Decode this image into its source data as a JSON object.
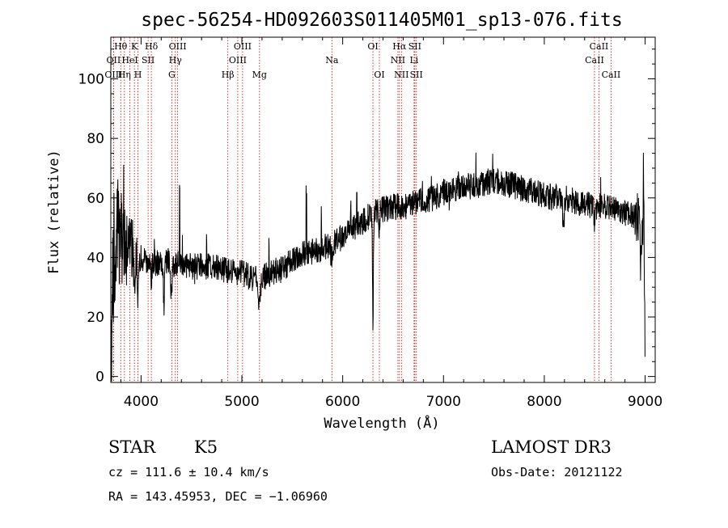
{
  "chart_data": {
    "type": "line",
    "title": "spec-56254-HD092603S011405M01_sp13-076.fits",
    "xlabel": "Wavelength (Å)",
    "ylabel": "Flux (relative)",
    "xlim": [
      3700,
      9100
    ],
    "ylim": [
      -2,
      114
    ],
    "xticks": [
      4000,
      5000,
      6000,
      7000,
      8000,
      9000
    ],
    "yticks": [
      0,
      20,
      40,
      60,
      80,
      100
    ],
    "xtick_labels": [
      "4000",
      "5000",
      "6000",
      "7000",
      "8000",
      "9000"
    ],
    "ytick_labels": [
      "0",
      "20",
      "40",
      "60",
      "80",
      "100"
    ],
    "continuum": [
      [
        3700,
        42
      ],
      [
        3800,
        47
      ],
      [
        3900,
        43
      ],
      [
        4000,
        40
      ],
      [
        4100,
        38
      ],
      [
        4200,
        38
      ],
      [
        4300,
        39
      ],
      [
        4400,
        37
      ],
      [
        4500,
        37
      ],
      [
        4600,
        37
      ],
      [
        4700,
        37
      ],
      [
        4800,
        36
      ],
      [
        4900,
        35
      ],
      [
        5000,
        35
      ],
      [
        5100,
        33
      ],
      [
        5200,
        33
      ],
      [
        5300,
        35
      ],
      [
        5400,
        36
      ],
      [
        5500,
        39
      ],
      [
        5600,
        41
      ],
      [
        5700,
        42
      ],
      [
        5800,
        43
      ],
      [
        5900,
        45
      ],
      [
        6000,
        47
      ],
      [
        6100,
        50
      ],
      [
        6200,
        52
      ],
      [
        6300,
        55
      ],
      [
        6400,
        56
      ],
      [
        6500,
        57
      ],
      [
        6600,
        57
      ],
      [
        6700,
        58
      ],
      [
        6800,
        59
      ],
      [
        6900,
        60
      ],
      [
        7000,
        62
      ],
      [
        7100,
        63
      ],
      [
        7200,
        64
      ],
      [
        7300,
        64
      ],
      [
        7400,
        65
      ],
      [
        7500,
        66
      ],
      [
        7600,
        65
      ],
      [
        7700,
        64
      ],
      [
        7800,
        63
      ],
      [
        7900,
        62
      ],
      [
        8000,
        61
      ],
      [
        8100,
        60
      ],
      [
        8200,
        60
      ],
      [
        8300,
        59
      ],
      [
        8400,
        58
      ],
      [
        8500,
        57
      ],
      [
        8600,
        57
      ],
      [
        8700,
        56
      ],
      [
        8800,
        55
      ],
      [
        8900,
        54
      ],
      [
        9000,
        52
      ]
    ],
    "absorption_features": [
      {
        "x": 3710,
        "depth": 40,
        "width": 10
      },
      {
        "x": 3934,
        "depth": 12,
        "width": 8
      },
      {
        "x": 3969,
        "depth": 12,
        "width": 8
      },
      {
        "x": 4101,
        "depth": 6,
        "width": 8
      },
      {
        "x": 4227,
        "depth": 14,
        "width": 8
      },
      {
        "x": 4300,
        "depth": 10,
        "width": 14
      },
      {
        "x": 5175,
        "depth": 9,
        "width": 16
      },
      {
        "x": 5890,
        "depth": 6,
        "width": 10
      },
      {
        "x": 6300,
        "depth": 36,
        "width": 6
      },
      {
        "x": 6363,
        "depth": 8,
        "width": 6
      },
      {
        "x": 8190,
        "depth": 10,
        "width": 10
      },
      {
        "x": 8500,
        "depth": 6,
        "width": 10
      },
      {
        "x": 8960,
        "depth": 16,
        "width": 10
      },
      {
        "x": 8998,
        "depth": 40,
        "width": 5
      }
    ],
    "emission_spikes": [
      {
        "x": 4383,
        "height": 25
      },
      {
        "x": 4650,
        "height": 8
      },
      {
        "x": 5270,
        "height": 9
      },
      {
        "x": 5640,
        "height": 18
      },
      {
        "x": 5790,
        "height": 12
      },
      {
        "x": 6080,
        "height": 8
      },
      {
        "x": 6140,
        "height": 8
      }
    ],
    "noise_model": {
      "blue_amplitude": 22,
      "blue_until": 4000,
      "base_amplitude": 4.5
    },
    "lines": [
      {
        "label": "OII",
        "x": 3727,
        "row": 1
      },
      {
        "label": "OIII",
        "x": 3727,
        "row": 2
      },
      {
        "label": "Hθ",
        "x": 3798,
        "row": 0
      },
      {
        "label": "Hη",
        "x": 3835,
        "row": 2
      },
      {
        "label": "HeI",
        "x": 3889,
        "row": 1
      },
      {
        "label": "K",
        "x": 3934,
        "row": 0
      },
      {
        "label": "H",
        "x": 3969,
        "row": 2
      },
      {
        "label": "SII",
        "x": 4070,
        "row": 1
      },
      {
        "label": "Hδ",
        "x": 4102,
        "row": 0
      },
      {
        "label": "G",
        "x": 4305,
        "row": 2
      },
      {
        "label": "OIII",
        "x": 4363,
        "row": 0
      },
      {
        "label": "Hγ",
        "x": 4340,
        "row": 1
      },
      {
        "label": "Hβ",
        "x": 4861,
        "row": 2
      },
      {
        "label": "OIII",
        "x": 4959,
        "row": 1
      },
      {
        "label": "OIII",
        "x": 5007,
        "row": 0
      },
      {
        "label": "Mg",
        "x": 5175,
        "row": 2
      },
      {
        "label": "Na",
        "x": 5893,
        "row": 1
      },
      {
        "label": "OI",
        "x": 6300,
        "row": 0
      },
      {
        "label": "OI",
        "x": 6364,
        "row": 2
      },
      {
        "label": "NII",
        "x": 6548,
        "row": 1
      },
      {
        "label": "Hα",
        "x": 6563,
        "row": 0
      },
      {
        "label": "NII",
        "x": 6583,
        "row": 2
      },
      {
        "label": "Li",
        "x": 6708,
        "row": 1
      },
      {
        "label": "SII",
        "x": 6716,
        "row": 0
      },
      {
        "label": "SII",
        "x": 6731,
        "row": 2
      },
      {
        "label": "CaII",
        "x": 8498,
        "row": 1
      },
      {
        "label": "CaII",
        "x": 8542,
        "row": 0
      },
      {
        "label": "CaII",
        "x": 8662,
        "row": 2
      }
    ],
    "line_color": "#cc0000",
    "spectrum_color": "#000000",
    "grid": false
  },
  "info": {
    "object_class": "STAR",
    "subclass": "K5",
    "cz": "cz = 111.6 ± 10.4 km/s",
    "coords": "RA = 143.45953, DEC =  −1.06960",
    "survey": "LAMOST DR3",
    "obs_date": "Obs-Date: 20121122"
  }
}
